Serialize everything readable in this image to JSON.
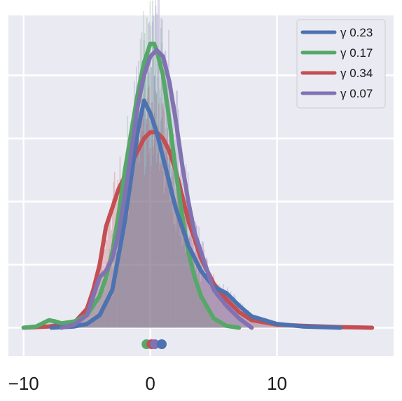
{
  "chart_data": {
    "type": "area",
    "title": "",
    "xlabel": "",
    "ylabel": "",
    "xlim": [
      -11.2,
      19.2
    ],
    "ylim": [
      -0.045,
      0.495
    ],
    "grid": true,
    "legend_position": "top-right",
    "x_ticks": [
      {
        "value": -10,
        "label": "−10"
      },
      {
        "value": 0,
        "label": "0"
      },
      {
        "value": 10,
        "label": "10"
      }
    ],
    "y_gridlines": [
      0,
      0.1,
      0.2,
      0.3,
      0.4
    ],
    "series": [
      {
        "name": "γ 0.23",
        "color": "#4c72b0",
        "rug_mean": 0.9,
        "x": [
          -7.8,
          -6,
          -5,
          -4,
          -3,
          -2,
          -1.5,
          -1,
          -0.5,
          0,
          0.5,
          1,
          1.5,
          2,
          2.5,
          3,
          3.5,
          4,
          5,
          6,
          7,
          8,
          10,
          12,
          15
        ],
        "y": [
          0.0,
          0.002,
          0.006,
          0.02,
          0.06,
          0.17,
          0.24,
          0.31,
          0.36,
          0.34,
          0.31,
          0.27,
          0.23,
          0.19,
          0.16,
          0.13,
          0.11,
          0.09,
          0.065,
          0.055,
          0.035,
          0.018,
          0.006,
          0.002,
          0.0
        ]
      },
      {
        "name": "γ 0.17",
        "color": "#55a868",
        "rug_mean": -0.3,
        "x": [
          -10,
          -9,
          -8.5,
          -8,
          -7.5,
          -7,
          -6,
          -5,
          -4,
          -3.5,
          -3,
          -2.5,
          -2,
          -1.5,
          -1,
          -0.5,
          0,
          0.3,
          0.5,
          1,
          1.5,
          2,
          2.5,
          3,
          3.5,
          4,
          5,
          6,
          7
        ],
        "y": [
          0.0,
          0.002,
          0.007,
          0.012,
          0.01,
          0.007,
          0.01,
          0.02,
          0.05,
          0.08,
          0.12,
          0.18,
          0.25,
          0.31,
          0.37,
          0.42,
          0.45,
          0.45,
          0.44,
          0.4,
          0.33,
          0.25,
          0.18,
          0.12,
          0.08,
          0.05,
          0.015,
          0.003,
          0.0
        ]
      },
      {
        "name": "γ 0.34",
        "color": "#c44e52",
        "rug_mean": 0.1,
        "x": [
          -10,
          -8,
          -6,
          -5,
          -4.5,
          -4,
          -3.5,
          -3,
          -2.5,
          -2,
          -1.5,
          -1,
          -0.5,
          0,
          0.5,
          1,
          1.5,
          2,
          2.5,
          3,
          3.5,
          4,
          4.5,
          5,
          6,
          7,
          8,
          10,
          12,
          15,
          17.5
        ],
        "y": [
          0.0,
          0.002,
          0.008,
          0.03,
          0.06,
          0.1,
          0.16,
          0.19,
          0.22,
          0.24,
          0.26,
          0.28,
          0.3,
          0.31,
          0.31,
          0.3,
          0.28,
          0.25,
          0.21,
          0.17,
          0.14,
          0.11,
          0.09,
          0.07,
          0.045,
          0.025,
          0.012,
          0.005,
          0.003,
          0.001,
          0.0
        ]
      },
      {
        "name": "γ 0.07",
        "color": "#8172b2",
        "rug_mean": 0.35,
        "x": [
          -7,
          -6,
          -5,
          -4.5,
          -4,
          -3.5,
          -3,
          -2.5,
          -2,
          -1.5,
          -1,
          -0.5,
          0,
          0.5,
          1,
          1.5,
          2,
          2.5,
          3,
          3.5,
          4,
          4.5,
          5,
          6,
          7,
          8
        ],
        "y": [
          0.0,
          0.005,
          0.02,
          0.05,
          0.08,
          0.09,
          0.11,
          0.15,
          0.21,
          0.28,
          0.35,
          0.4,
          0.43,
          0.44,
          0.43,
          0.39,
          0.33,
          0.26,
          0.2,
          0.15,
          0.12,
          0.09,
          0.06,
          0.035,
          0.015,
          0.0
        ]
      }
    ]
  }
}
